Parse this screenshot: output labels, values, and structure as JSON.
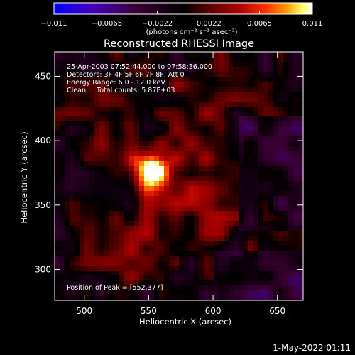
{
  "chart_data": {
    "type": "heatmap",
    "title": "Reconstructed RHESSI Image",
    "xlabel": "Heliocentric X (arcsec)",
    "ylabel": "Heliocentric Y (arcsec)",
    "xlim": [
      477,
      670
    ],
    "ylim": [
      276,
      469
    ],
    "x_ticks": [
      "500",
      "550",
      "600",
      "650"
    ],
    "y_ticks": [
      "450",
      "400",
      "350",
      "300"
    ],
    "x_tick_values": [
      500,
      550,
      600,
      650
    ],
    "y_tick_values": [
      450,
      400,
      350,
      300
    ],
    "colorbar": {
      "range": [
        -0.011,
        0.011
      ],
      "tick_labels": [
        "−0.011",
        "−0.0065",
        "−0.0022",
        "0.0022",
        "0.0065",
        "0.011"
      ],
      "tick_values": [
        -0.011,
        -0.0065,
        -0.0022,
        0.0022,
        0.0065,
        0.011
      ],
      "units": "(photons cm⁻² s⁻¹ asec⁻²)",
      "colors": [
        "#0000ff",
        "#4400bb",
        "#3a0033",
        "#000000",
        "#5a0000",
        "#b00000",
        "#ff3300",
        "#ff9900",
        "#ffff66",
        "#ffffff"
      ]
    },
    "annotations": [
      "25-Apr-2003 07:52:44.000 to 07:58:36.000",
      "Detectors: 3F 4F 5F 6F 7F 8F, Att 0",
      "Energy Range: 6.0 - 12.0 keV",
      "Clean     Total counts: 5.87E+03"
    ],
    "peak_label": "Position of Peak = [552,377]",
    "peak": {
      "x": 552,
      "y": 377,
      "value": 0.011
    },
    "grid": false
  },
  "footer": {
    "timestamp": "1-May-2022 01:11"
  }
}
